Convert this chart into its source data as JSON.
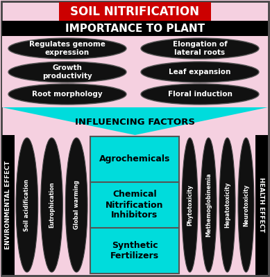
{
  "title": "SOIL NITRIFICATION",
  "title_bg": "#cc0000",
  "title_color": "white",
  "section1_title": "IMPORTANCE TO PLANT",
  "section1_bg": "#000000",
  "section1_text_color": "white",
  "plant_bg": "#f5d0e0",
  "left_ovals": [
    "Regulates genome\nexpression",
    "Growth\nproductivity",
    "Root morphology"
  ],
  "right_ovals": [
    "Elongation of\nlateral roots",
    "Leaf expansion",
    "Floral induction"
  ],
  "influencing_title": "INFLUENCING FACTORS",
  "influencing_bg": "#00dcdc",
  "center_items": [
    "Synthetic\nFertilizers",
    "Chemical\nNitrification\nInhibitors",
    "Agrochemicals"
  ],
  "env_label": "ENVIRONMENTAL EFFECT",
  "health_label": "HEALTH EFFECT",
  "env_items": [
    "Soil acidification",
    "Eutrophication",
    "Global warming"
  ],
  "health_items": [
    "Phytotoxicity",
    "Methemoglobinemia",
    "Hepatotoxicity",
    "Neurotoxicity"
  ],
  "oval_color": "#111111",
  "oval_text_color": "white"
}
